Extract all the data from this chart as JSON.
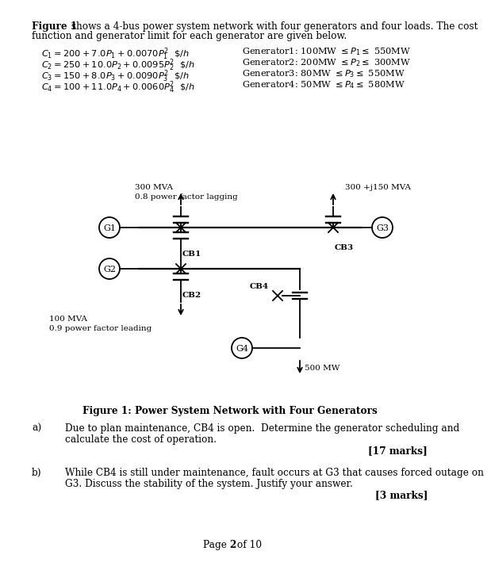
{
  "bg_color": "#ffffff",
  "text_color": "#1a1a1a",
  "title_bold": "Figure 1",
  "title_rest": " shows a 4-bus power system network with four generators and four loads. The cost",
  "title_line2": "function and generator limit for each generator are given below.",
  "cost_functions": [
    "C_1 = 200 + 7.0P_1 + 0.0070P_1^2  $/h",
    "C_2 = 250 + 10.0P_2 + 0.0095P_2^2  $/h",
    "C_3 = 150 + 8.0P_3 + 0.0090P_3^2  $/h",
    "C_4 = 100 + 11.0P_4 + 0.0060P_4^2  $/h"
  ],
  "generator_limits": [
    "Generator1: 100MW ≤ P₁ ≤ 550MW",
    "Generator2: 200MW ≤ P₂ ≤ 300MW",
    "Generator3: 80MW ≤ P₃ ≤ 550MW",
    "Generator4: 50MW ≤ P₄ ≤ 580MW"
  ],
  "load_top_left": "300 MVA\n0.8 power factor lagging",
  "load_top_right": "300 +j150 MVA",
  "load_bot_left": "100 MVA\n0.9 power factor leading",
  "load_bot_right": "500 MW",
  "figure_caption": "Figure 1: Power System Network with Four Generators",
  "qa_a_label": "a)",
  "qa_a_text1": "Due to plan maintenance, CB4 is open.  Determine the generator scheduling and",
  "qa_a_text2": "calculate the cost of operation.",
  "qa_a_marks": "[17 marks]",
  "qa_b_label": "b)",
  "qa_b_text1": "While CB4 is still under maintenance, fault occurs at G3 that causes forced outage on",
  "qa_b_text2": "G3. Discuss the stability of the system. Justify your answer.",
  "qa_b_marks": "[3 marks]",
  "page_footer_pre": "Page ",
  "page_footer_bold": "2",
  "page_footer_post": " of 10"
}
